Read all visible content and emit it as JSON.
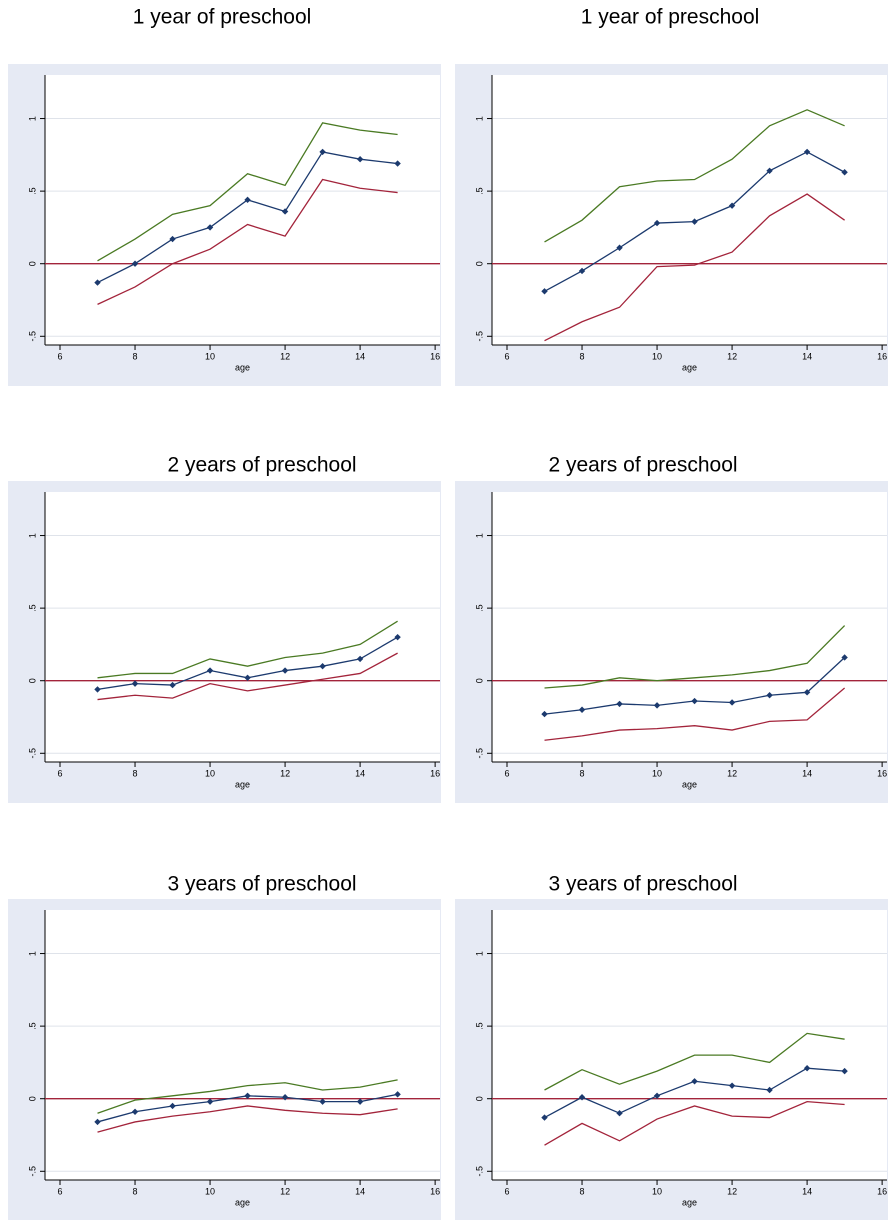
{
  "chart_data": [
    {
      "type": "line",
      "title": "1 year of preschool",
      "xlabel": "age",
      "x": [
        7,
        8,
        9,
        10,
        11,
        12,
        13,
        14,
        15
      ],
      "xlim": [
        5.6,
        16.13
      ],
      "xticks": [
        6,
        8,
        10,
        12,
        14,
        16
      ],
      "ylim": [
        -0.56,
        1.3
      ],
      "yticks": [
        {
          "value": -0.5,
          "label": "-.5"
        },
        0,
        {
          "value": 0.5,
          "label": ".5"
        },
        1
      ],
      "grid": true,
      "refline": {
        "y": 0,
        "color": "#a3243b"
      },
      "series": [
        {
          "color": "#4a7a23",
          "values": [
            0.02,
            0.17,
            0.34,
            0.4,
            0.62,
            0.54,
            0.97,
            0.92,
            0.89
          ]
        },
        {
          "color": "#a3243b",
          "values": [
            -0.28,
            -0.16,
            0.0,
            0.1,
            0.27,
            0.19,
            0.58,
            0.52,
            0.49
          ]
        },
        {
          "color": "#1c3a6e",
          "marker": "diamond",
          "values": [
            -0.13,
            0.0,
            0.17,
            0.25,
            0.44,
            0.36,
            0.77,
            0.72,
            0.69
          ]
        }
      ]
    },
    {
      "type": "line",
      "title": "1 year of preschool",
      "xlabel": "age",
      "x": [
        7,
        8,
        9,
        10,
        11,
        12,
        13,
        14,
        15
      ],
      "xlim": [
        5.6,
        16.13
      ],
      "xticks": [
        6,
        8,
        10,
        12,
        14,
        16
      ],
      "ylim": [
        -0.56,
        1.3
      ],
      "yticks": [
        {
          "value": -0.5,
          "label": "-.5"
        },
        0,
        {
          "value": 0.5,
          "label": ".5"
        },
        1
      ],
      "grid": true,
      "refline": {
        "y": 0,
        "color": "#a3243b"
      },
      "series": [
        {
          "color": "#4a7a23",
          "values": [
            0.15,
            0.3,
            0.53,
            0.57,
            0.58,
            0.72,
            0.95,
            1.06,
            0.95
          ]
        },
        {
          "color": "#a3243b",
          "values": [
            -0.53,
            -0.4,
            -0.3,
            -0.02,
            -0.01,
            0.08,
            0.33,
            0.48,
            0.3
          ]
        },
        {
          "color": "#1c3a6e",
          "marker": "diamond",
          "values": [
            -0.19,
            -0.05,
            0.11,
            0.28,
            0.29,
            0.4,
            0.64,
            0.77,
            0.63
          ]
        }
      ]
    },
    {
      "type": "line",
      "title": "2 years of preschool",
      "xlabel": "age",
      "x": [
        7,
        8,
        9,
        10,
        11,
        12,
        13,
        14,
        15
      ],
      "xlim": [
        5.6,
        16.13
      ],
      "xticks": [
        6,
        8,
        10,
        12,
        14,
        16
      ],
      "ylim": [
        -0.56,
        1.3
      ],
      "yticks": [
        {
          "value": -0.5,
          "label": "-.5"
        },
        0,
        {
          "value": 0.5,
          "label": ".5"
        },
        1
      ],
      "grid": true,
      "refline": {
        "y": 0,
        "color": "#a3243b"
      },
      "series": [
        {
          "color": "#4a7a23",
          "values": [
            0.02,
            0.05,
            0.05,
            0.15,
            0.1,
            0.16,
            0.19,
            0.25,
            0.41
          ]
        },
        {
          "color": "#a3243b",
          "values": [
            -0.13,
            -0.1,
            -0.12,
            -0.02,
            -0.07,
            -0.03,
            0.01,
            0.05,
            0.19
          ]
        },
        {
          "color": "#1c3a6e",
          "marker": "diamond",
          "values": [
            -0.06,
            -0.02,
            -0.03,
            0.07,
            0.02,
            0.07,
            0.1,
            0.15,
            0.3
          ]
        }
      ]
    },
    {
      "type": "line",
      "title": "2 years of preschool",
      "xlabel": "age",
      "x": [
        7,
        8,
        9,
        10,
        11,
        12,
        13,
        14,
        15
      ],
      "xlim": [
        5.6,
        16.13
      ],
      "xticks": [
        6,
        8,
        10,
        12,
        14,
        16
      ],
      "ylim": [
        -0.56,
        1.3
      ],
      "yticks": [
        {
          "value": -0.5,
          "label": "-.5"
        },
        0,
        {
          "value": 0.5,
          "label": ".5"
        },
        1
      ],
      "grid": true,
      "refline": {
        "y": 0,
        "color": "#a3243b"
      },
      "series": [
        {
          "color": "#4a7a23",
          "values": [
            -0.05,
            -0.03,
            0.02,
            0.0,
            0.02,
            0.04,
            0.07,
            0.12,
            0.38
          ]
        },
        {
          "color": "#a3243b",
          "values": [
            -0.41,
            -0.38,
            -0.34,
            -0.33,
            -0.31,
            -0.34,
            -0.28,
            -0.27,
            -0.05
          ]
        },
        {
          "color": "#1c3a6e",
          "marker": "diamond",
          "values": [
            -0.23,
            -0.2,
            -0.16,
            -0.17,
            -0.14,
            -0.15,
            -0.1,
            -0.08,
            0.16
          ]
        }
      ]
    },
    {
      "type": "line",
      "title": "3 years of preschool",
      "xlabel": "age",
      "x": [
        7,
        8,
        9,
        10,
        11,
        12,
        13,
        14,
        15
      ],
      "xlim": [
        5.6,
        16.13
      ],
      "xticks": [
        6,
        8,
        10,
        12,
        14,
        16
      ],
      "ylim": [
        -0.56,
        1.3
      ],
      "yticks": [
        {
          "value": -0.5,
          "label": "-.5"
        },
        0,
        {
          "value": 0.5,
          "label": ".5"
        },
        1
      ],
      "grid": true,
      "refline": {
        "y": 0,
        "color": "#a3243b"
      },
      "series": [
        {
          "color": "#4a7a23",
          "values": [
            -0.1,
            -0.01,
            0.02,
            0.05,
            0.09,
            0.11,
            0.06,
            0.08,
            0.13
          ]
        },
        {
          "color": "#a3243b",
          "values": [
            -0.23,
            -0.16,
            -0.12,
            -0.09,
            -0.05,
            -0.08,
            -0.1,
            -0.11,
            -0.07
          ]
        },
        {
          "color": "#1c3a6e",
          "marker": "diamond",
          "values": [
            -0.16,
            -0.09,
            -0.05,
            -0.02,
            0.02,
            0.01,
            -0.02,
            -0.02,
            0.03
          ]
        }
      ]
    },
    {
      "type": "line",
      "title": "3 years of preschool",
      "xlabel": "age",
      "x": [
        7,
        8,
        9,
        10,
        11,
        12,
        13,
        14,
        15
      ],
      "xlim": [
        5.6,
        16.13
      ],
      "xticks": [
        6,
        8,
        10,
        12,
        14,
        16
      ],
      "ylim": [
        -0.56,
        1.3
      ],
      "yticks": [
        {
          "value": -0.5,
          "label": "-.5"
        },
        0,
        {
          "value": 0.5,
          "label": ".5"
        },
        1
      ],
      "grid": true,
      "refline": {
        "y": 0,
        "color": "#a3243b"
      },
      "series": [
        {
          "color": "#4a7a23",
          "values": [
            0.06,
            0.2,
            0.1,
            0.19,
            0.3,
            0.3,
            0.25,
            0.45,
            0.41
          ]
        },
        {
          "color": "#a3243b",
          "values": [
            -0.32,
            -0.17,
            -0.29,
            -0.14,
            -0.05,
            -0.12,
            -0.13,
            -0.02,
            -0.04
          ]
        },
        {
          "color": "#1c3a6e",
          "marker": "diamond",
          "values": [
            -0.13,
            0.01,
            -0.1,
            0.02,
            0.12,
            0.09,
            0.06,
            0.21,
            0.19
          ]
        }
      ]
    }
  ]
}
